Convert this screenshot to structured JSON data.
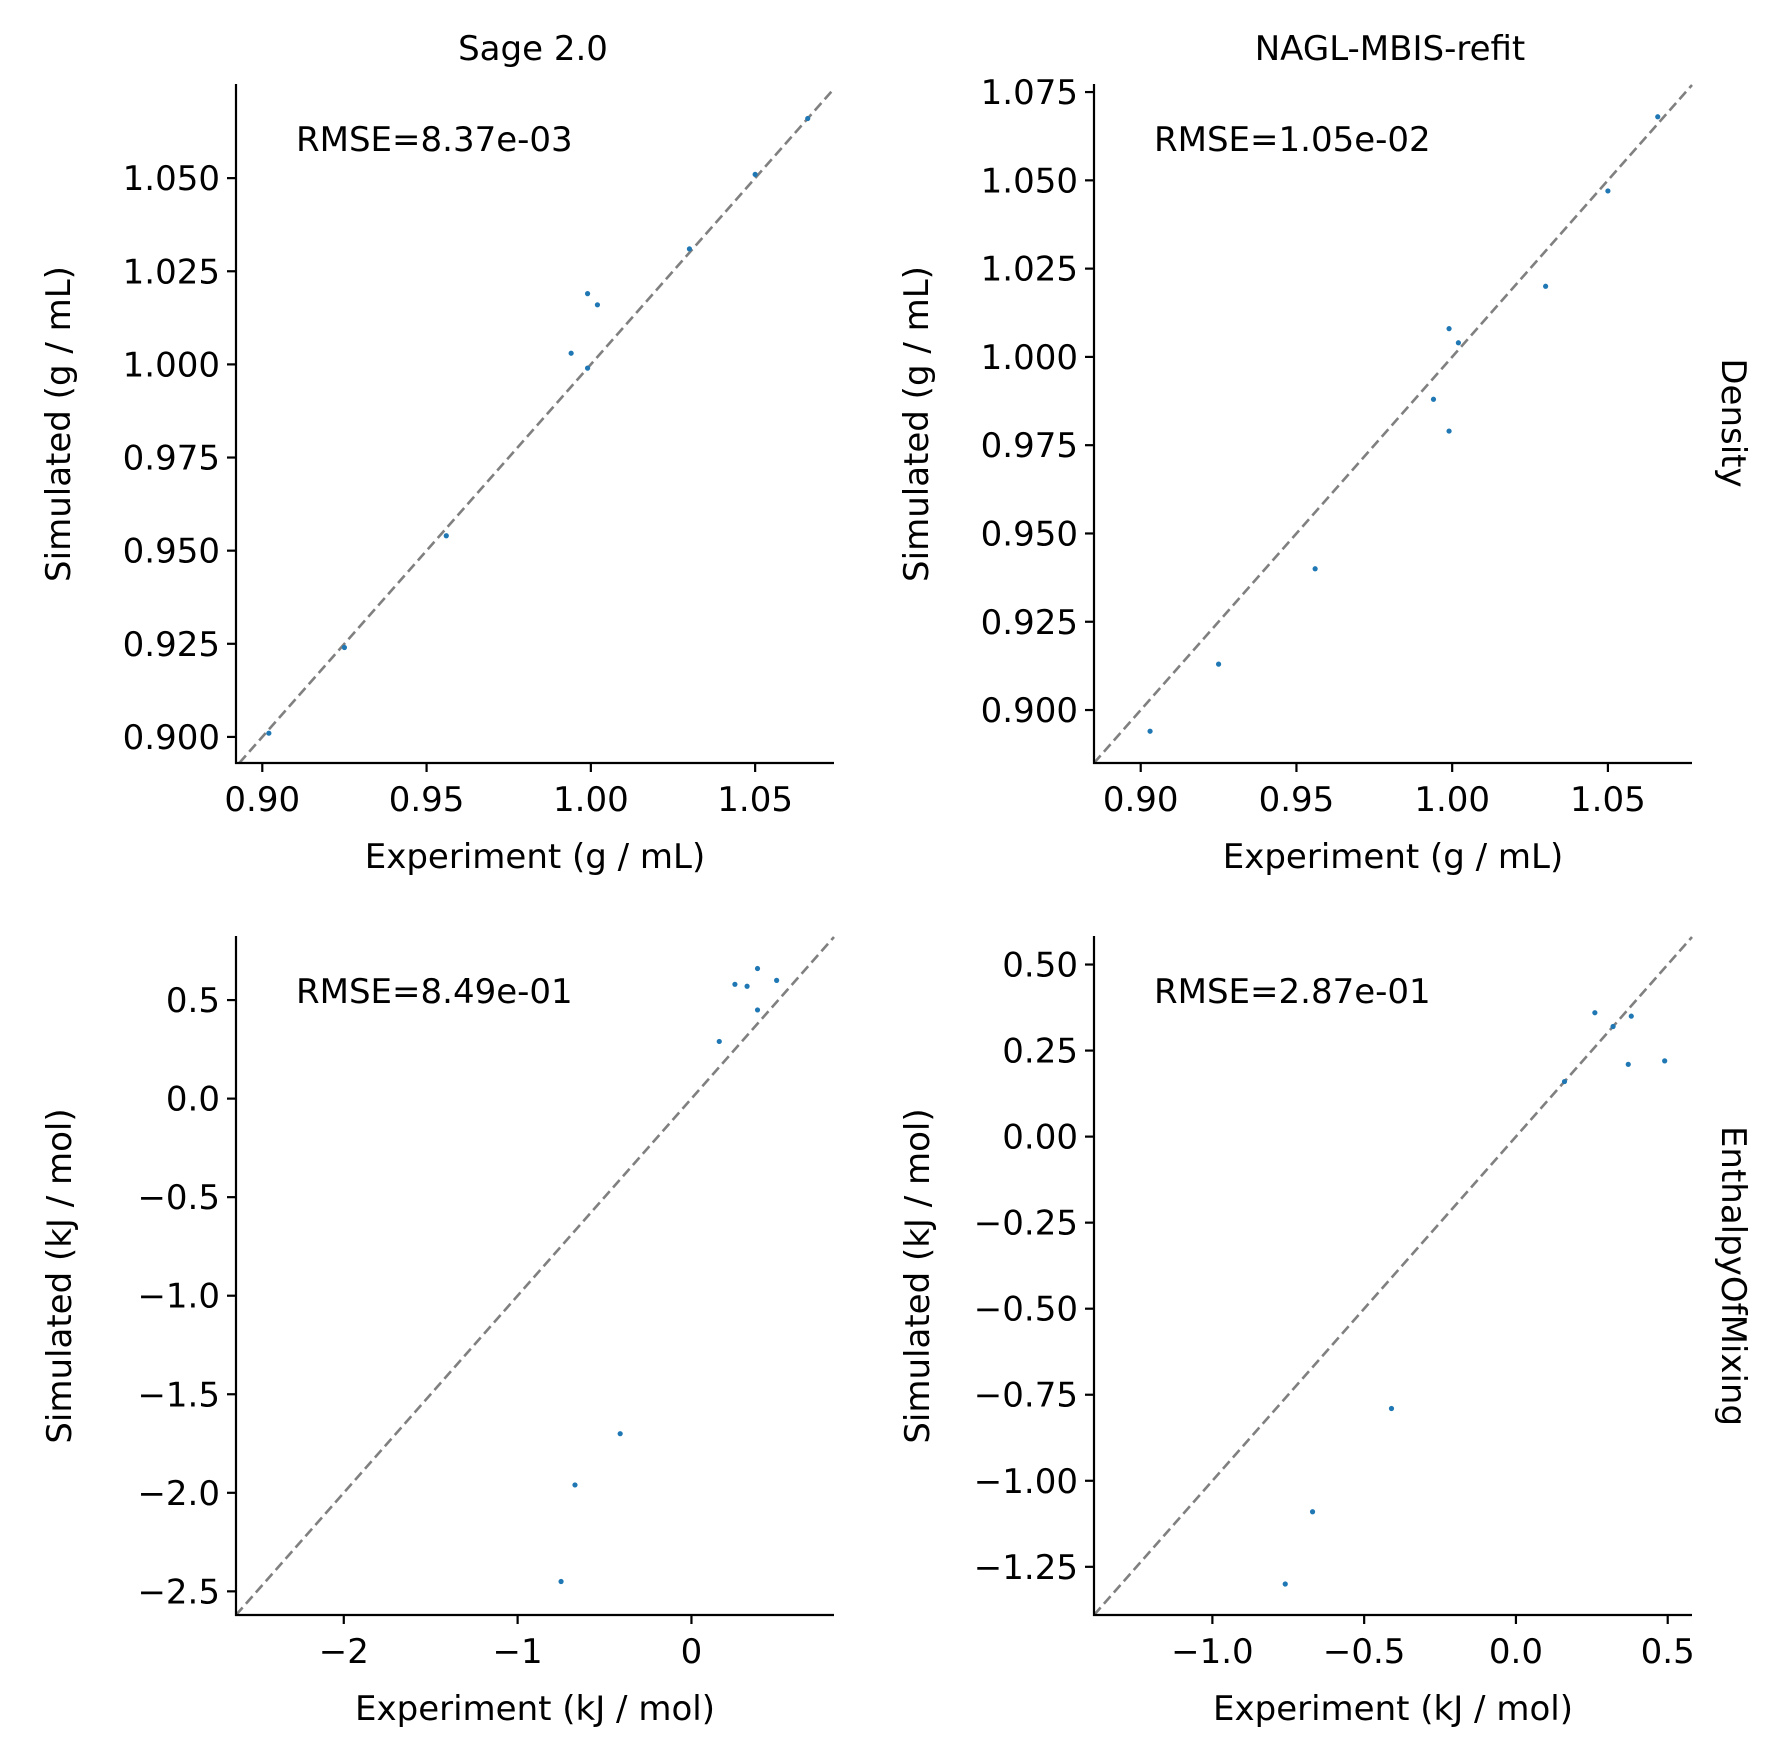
{
  "column_titles": [
    "Sage 2.0",
    "NAGL-MBIS-refit"
  ],
  "row_titles": [
    "Density",
    "EnthalpyOfMixing"
  ],
  "point_color": "#1f77b4",
  "diagonal_color": "#808080",
  "chart_data": [
    {
      "type": "scatter",
      "panel": "Density / Sage 2.0",
      "title": "Sage 2.0",
      "xlabel": "Experiment (g / mL)",
      "ylabel": "Simulated (g / mL)",
      "annotation": "RMSE=8.37e-03",
      "xlim": [
        0.892,
        1.074
      ],
      "ylim": [
        0.893,
        1.075
      ],
      "xticks": [
        0.9,
        0.95,
        1.0,
        1.05
      ],
      "xtick_labels": [
        "0.90",
        "0.95",
        "1.00",
        "1.05"
      ],
      "yticks": [
        0.9,
        0.925,
        0.95,
        0.975,
        1.0,
        1.025,
        1.05
      ],
      "ytick_labels": [
        "0.900",
        "0.925",
        "0.950",
        "0.975",
        "1.000",
        "1.025",
        "1.050"
      ],
      "x": [
        0.902,
        0.925,
        0.956,
        0.994,
        0.999,
        0.999,
        1.002,
        1.03,
        1.05,
        1.066
      ],
      "y": [
        0.901,
        0.924,
        0.954,
        1.003,
        1.019,
        0.999,
        1.016,
        1.031,
        1.051,
        1.066
      ]
    },
    {
      "type": "scatter",
      "panel": "Density / NAGL-MBIS-refit",
      "title": "NAGL-MBIS-refit",
      "xlabel": "Experiment (g / mL)",
      "ylabel": "Simulated (g / mL)",
      "annotation": "RMSE=1.05e-02",
      "xlim": [
        0.885,
        1.077
      ],
      "ylim": [
        0.885,
        1.077
      ],
      "xticks": [
        0.9,
        0.95,
        1.0,
        1.05
      ],
      "xtick_labels": [
        "0.90",
        "0.95",
        "1.00",
        "1.05"
      ],
      "yticks": [
        0.9,
        0.925,
        0.95,
        0.975,
        1.0,
        1.025,
        1.05,
        1.075
      ],
      "ytick_labels": [
        "0.900",
        "0.925",
        "0.950",
        "0.975",
        "1.000",
        "1.025",
        "1.050",
        "1.075"
      ],
      "x": [
        0.903,
        0.925,
        0.956,
        0.994,
        0.999,
        0.999,
        1.002,
        1.03,
        1.05,
        1.066
      ],
      "y": [
        0.894,
        0.913,
        0.94,
        0.988,
        0.979,
        1.008,
        1.004,
        1.02,
        1.047,
        1.068
      ]
    },
    {
      "type": "scatter",
      "panel": "EnthalpyOfMixing / Sage 2.0",
      "title": "",
      "xlabel": "Experiment (kJ / mol)",
      "ylabel": "Simulated (kJ / mol)",
      "annotation": "RMSE=8.49e-01",
      "xlim": [
        -2.62,
        0.82
      ],
      "ylim": [
        -2.62,
        0.82
      ],
      "xticks": [
        -2,
        -1,
        0
      ],
      "xtick_labels": [
        "−2",
        "−1",
        "0"
      ],
      "yticks": [
        -2.5,
        -2.0,
        -1.5,
        -1.0,
        -0.5,
        0.0,
        0.5
      ],
      "ytick_labels": [
        "−2.5",
        "−2.0",
        "−1.5",
        "−1.0",
        "−0.5",
        "0.0",
        "0.5"
      ],
      "x": [
        -0.75,
        -0.67,
        -0.41,
        0.16,
        0.25,
        0.32,
        0.38,
        0.38,
        0.49
      ],
      "y": [
        -2.45,
        -1.96,
        -1.7,
        0.29,
        0.58,
        0.57,
        0.66,
        0.45,
        0.6
      ]
    },
    {
      "type": "scatter",
      "panel": "EnthalpyOfMixing / NAGL-MBIS-refit",
      "title": "",
      "xlabel": "Experiment (kJ / mol)",
      "ylabel": "Simulated (kJ / mol)",
      "annotation": "RMSE=2.87e-01",
      "xlim": [
        -1.39,
        0.58
      ],
      "ylim": [
        -1.39,
        0.58
      ],
      "xticks": [
        -1.0,
        -0.5,
        0.0,
        0.5
      ],
      "xtick_labels": [
        "−1.0",
        "−0.5",
        "0.0",
        "0.5"
      ],
      "yticks": [
        -1.25,
        -1.0,
        -0.75,
        -0.5,
        -0.25,
        0.0,
        0.25,
        0.5
      ],
      "ytick_labels": [
        "−1.25",
        "−1.00",
        "−0.75",
        "−0.50",
        "−0.25",
        "0.00",
        "0.25",
        "0.50"
      ],
      "x": [
        -0.76,
        -0.67,
        -0.41,
        0.16,
        0.26,
        0.32,
        0.37,
        0.38,
        0.49
      ],
      "y": [
        -1.3,
        -1.09,
        -0.79,
        0.16,
        0.36,
        0.32,
        0.21,
        0.35,
        0.22
      ]
    }
  ]
}
